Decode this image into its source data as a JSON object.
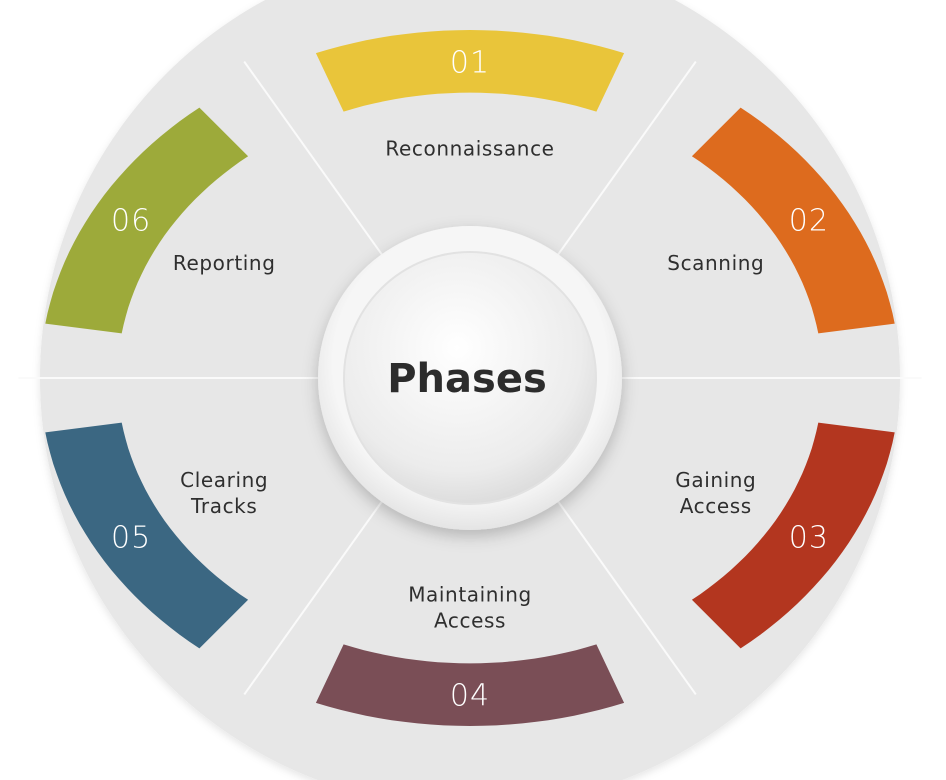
{
  "center": {
    "title": "Phases"
  },
  "phases": [
    {
      "number": "01",
      "label_lines": [
        "Reconnaissance"
      ],
      "color": "#E9C53A"
    },
    {
      "number": "02",
      "label_lines": [
        "Scanning"
      ],
      "color": "#DD6B1E"
    },
    {
      "number": "03",
      "label_lines": [
        "Gaining",
        "Access"
      ],
      "color": "#B3361F"
    },
    {
      "number": "04",
      "label_lines": [
        "Maintaining",
        "Access"
      ],
      "color": "#7A4E56"
    },
    {
      "number": "05",
      "label_lines": [
        "Clearing",
        "Tracks"
      ],
      "color": "#3B6782"
    },
    {
      "number": "06",
      "label_lines": [
        "Reporting"
      ],
      "color": "#9DAA3A"
    }
  ],
  "colors": {
    "wheel_face": "#E7E7E7",
    "divider": "#FAFAFA",
    "hub": "#F2F2F2",
    "text": "#2F2F2F"
  }
}
